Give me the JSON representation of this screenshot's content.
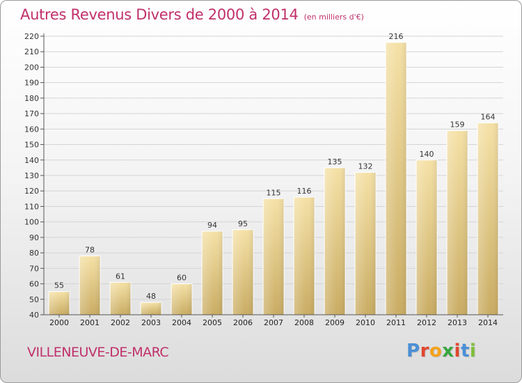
{
  "page": {
    "title": "Autres Revenus Divers de 2000 à 2014",
    "unit_note": "(en milliers d'€)",
    "commune": "VILLENEUVE-DE-MARC",
    "logo": {
      "letters": [
        "P",
        "r",
        "o",
        "x",
        "i",
        "t",
        "i"
      ],
      "colors": [
        "#4a8fd6",
        "#e0462f",
        "#f5a21b",
        "#3aa540",
        "#e0462f",
        "#4a8fd6",
        "#7fbf3a"
      ]
    }
  },
  "chart_data": {
    "type": "bar",
    "categories": [
      "2000",
      "2001",
      "2002",
      "2003",
      "2004",
      "2005",
      "2006",
      "2007",
      "2008",
      "2009",
      "2010",
      "2011",
      "2012",
      "2013",
      "2014"
    ],
    "values": [
      55,
      78,
      61,
      48,
      60,
      94,
      95,
      115,
      116,
      135,
      132,
      216,
      140,
      159,
      164
    ],
    "title": "Autres Revenus Divers de 2000 à 2014",
    "ylim": [
      40,
      220
    ],
    "yticks": [
      40,
      50,
      60,
      70,
      80,
      90,
      100,
      110,
      120,
      130,
      140,
      150,
      160,
      170,
      180,
      190,
      200,
      210,
      220
    ],
    "grid": true,
    "legend": "none",
    "bar_color": "#eacc80"
  }
}
